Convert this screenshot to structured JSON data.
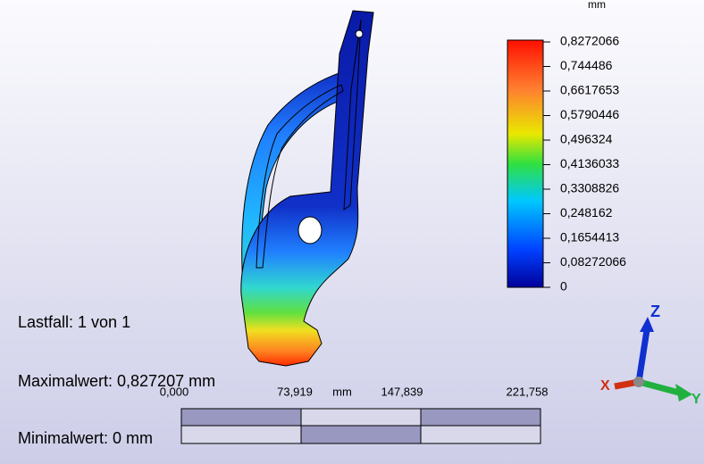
{
  "legend": {
    "unit": "mm",
    "labels": [
      "0,8272066",
      "0,744486",
      "0,6617653",
      "0,5790446",
      "0,496324",
      "0,4136033",
      "0,3308826",
      "0,248162",
      "0,1654413",
      "0,08272066",
      "0"
    ]
  },
  "info": {
    "load_case": "Lastfall: 1 von 1",
    "max": "Maximalwert: 0,827207 mm",
    "min": "Minimalwert: 0 mm"
  },
  "scale_bar": {
    "labels": [
      "0,000",
      "73,919",
      "147,839",
      "221,758"
    ],
    "unit": "mm"
  },
  "triad": {
    "z": "Z",
    "x": "X",
    "y": "Y"
  }
}
